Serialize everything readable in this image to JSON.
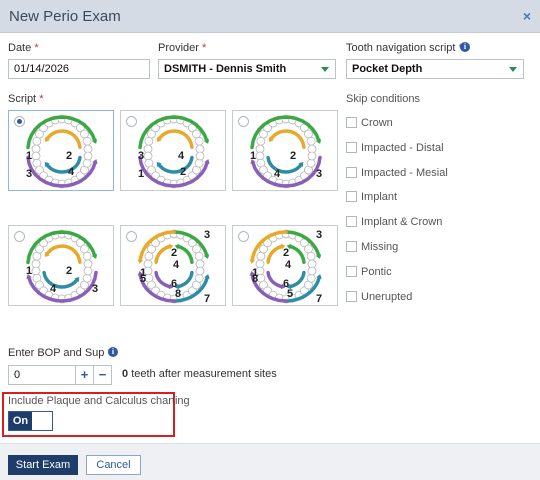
{
  "dialog": {
    "title": "New Perio Exam",
    "close_label": "×"
  },
  "form": {
    "date": {
      "label": "Date",
      "value": "01/14/2026"
    },
    "provider": {
      "label": "Provider",
      "value": "DSMITH - Dennis Smith"
    },
    "navigation": {
      "label": "Tooth navigation script",
      "value": "Pocket Depth"
    },
    "required_mark": "*"
  },
  "script": {
    "label": "Script",
    "options": [
      {
        "selected": true,
        "quad_labels": [
          "1",
          "2",
          "3",
          "4"
        ]
      },
      {
        "selected": false,
        "quad_labels": [
          "3",
          "4",
          "1",
          "2"
        ]
      },
      {
        "selected": false,
        "quad_labels": [
          "1",
          "2",
          "4",
          "3"
        ]
      },
      {
        "selected": false,
        "quad_labels": [
          "1",
          "2",
          "4",
          "3"
        ]
      },
      {
        "selected": false,
        "quad_labels": [
          "1",
          "2",
          "3",
          "4",
          "5",
          "6",
          "7",
          "8"
        ]
      },
      {
        "selected": false,
        "quad_labels": [
          "1",
          "2",
          "3",
          "4",
          "8",
          "6",
          "7",
          "5"
        ]
      }
    ]
  },
  "skip": {
    "label": "Skip conditions",
    "items": [
      "Crown",
      "Impacted - Distal",
      "Impacted - Mesial",
      "Implant",
      "Implant & Crown",
      "Missing",
      "Pontic",
      "Unerupted"
    ]
  },
  "bop": {
    "label": "Enter BOP and Sup",
    "value": "0",
    "plus": "+",
    "minus": "−",
    "count": "0",
    "suffix": "teeth after measurement sites"
  },
  "plaque": {
    "label": "Include Plaque and Calculus charting",
    "toggle": "On"
  },
  "footer": {
    "start": "Start Exam",
    "cancel": "Cancel"
  },
  "colors": {
    "green": "#3aa843",
    "orange": "#e9a928",
    "teal": "#2e8ca6",
    "purple": "#8a5fb8",
    "primary": "#1f3d6b",
    "highlight": "#d81e1e"
  }
}
